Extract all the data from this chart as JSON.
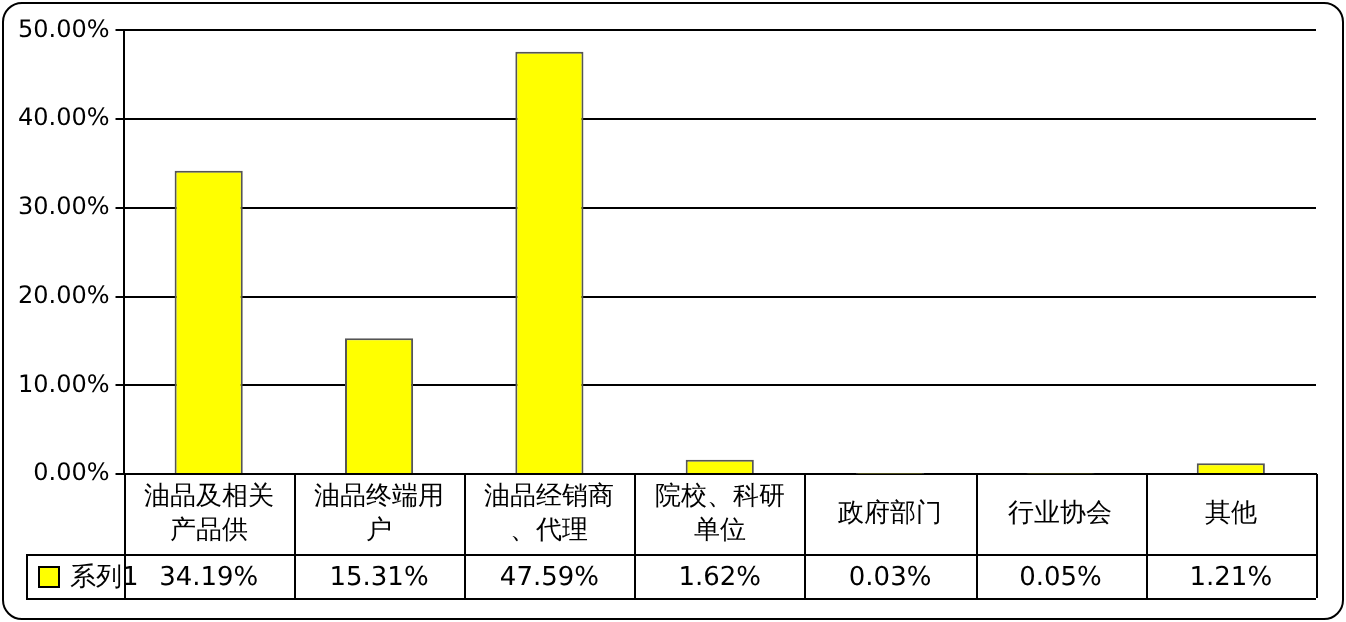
{
  "chart_data": {
    "type": "bar",
    "categories": [
      "油品及相关产品供",
      "油品终端用户",
      "油品经销商、代理",
      "院校、科研单位",
      "政府部门",
      "行业协会",
      "其他"
    ],
    "series": [
      {
        "name": "系列1",
        "color": "#ffff00",
        "values": [
          34.19,
          15.31,
          47.59,
          1.62,
          0.03,
          0.05,
          1.21
        ],
        "value_labels": [
          "34.19%",
          "15.31%",
          "47.59%",
          "1.62%",
          "0.03%",
          "0.05%",
          "1.21%"
        ]
      }
    ],
    "ylim": [
      0,
      50
    ],
    "yticks": [
      {
        "value": 0,
        "label": "0.00%"
      },
      {
        "value": 10,
        "label": "10.00%"
      },
      {
        "value": 20,
        "label": "20.00%"
      },
      {
        "value": 30,
        "label": "30.00%"
      },
      {
        "value": 40,
        "label": "40.00%"
      },
      {
        "value": 50,
        "label": "50.00%"
      }
    ],
    "grid": "y",
    "legend": "bottom"
  }
}
